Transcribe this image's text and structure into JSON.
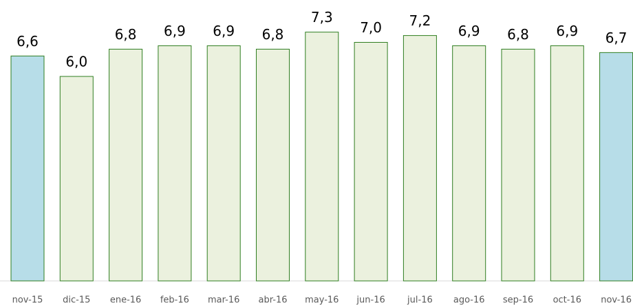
{
  "chart_data": {
    "type": "bar",
    "categories": [
      "nov-15",
      "dic-15",
      "ene-16",
      "feb-16",
      "mar-16",
      "abr-16",
      "may-16",
      "jun-16",
      "jul-16",
      "ago-16",
      "sep-16",
      "oct-16",
      "nov-16"
    ],
    "values": [
      6.6,
      6.0,
      6.8,
      6.9,
      6.9,
      6.8,
      7.3,
      7.0,
      7.2,
      6.9,
      6.8,
      6.9,
      6.7
    ],
    "value_labels": [
      "6,6",
      "6,0",
      "6,8",
      "6,9",
      "6,9",
      "6,8",
      "7,3",
      "7,0",
      "7,2",
      "6,9",
      "6,8",
      "6,9",
      "6,7"
    ],
    "colors": [
      "#b7dde8",
      "#ebf1de",
      "#ebf1de",
      "#ebf1de",
      "#ebf1de",
      "#ebf1de",
      "#ebf1de",
      "#ebf1de",
      "#ebf1de",
      "#ebf1de",
      "#ebf1de",
      "#ebf1de",
      "#b7dde8"
    ],
    "edge_color": "#2e7d1f"
  }
}
